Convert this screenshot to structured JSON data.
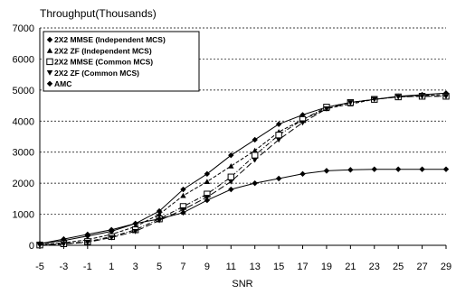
{
  "chart_data": {
    "type": "line",
    "title": "Throughput(Thousands)",
    "xlabel": "SNR",
    "ylabel": "",
    "xlim": [
      -5,
      29
    ],
    "ylim": [
      0,
      7000
    ],
    "x_ticks": [
      "-5",
      "-3",
      "-1",
      "1",
      "3",
      "5",
      "7",
      "9",
      "11",
      "13",
      "15",
      "17",
      "19",
      "21",
      "23",
      "25",
      "27",
      "29"
    ],
    "y_ticks": [
      "0",
      "1000",
      "2000",
      "3000",
      "4000",
      "5000",
      "6000",
      "7000"
    ],
    "grid": "horizontal dotted",
    "legend_position": "top-left",
    "x": [
      -5,
      -3,
      -1,
      1,
      3,
      5,
      7,
      9,
      11,
      13,
      15,
      17,
      19,
      21,
      23,
      25,
      27,
      29
    ],
    "series": [
      {
        "name": "2X2 MMSE (Independent MCS)",
        "marker": "diamond",
        "dash": "solid",
        "values": [
          50,
          150,
          300,
          450,
          700,
          1100,
          1800,
          2300,
          2900,
          3400,
          3900,
          4200,
          4450,
          4600,
          4700,
          4800,
          4850,
          4900
        ]
      },
      {
        "name": "2X2 ZF (Independent MCS)",
        "marker": "triangle-up",
        "dash": "dash",
        "values": [
          20,
          80,
          180,
          350,
          600,
          1000,
          1600,
          2050,
          2550,
          3050,
          3650,
          4050,
          4400,
          4550,
          4700,
          4780,
          4830,
          4850
        ]
      },
      {
        "name": "2X2 MMSE (Common MCS)",
        "marker": "square",
        "dash": "dashdot",
        "values": [
          10,
          50,
          120,
          280,
          500,
          850,
          1250,
          1650,
          2200,
          2900,
          3550,
          4050,
          4450,
          4600,
          4700,
          4780,
          4800,
          4800
        ]
      },
      {
        "name": "2X2 ZF (Common MCS)",
        "marker": "triangle-down",
        "dash": "longdash",
        "values": [
          5,
          40,
          100,
          250,
          450,
          800,
          1150,
          1550,
          2050,
          2750,
          3400,
          3950,
          4400,
          4600,
          4700,
          4780,
          4800,
          4800
        ]
      },
      {
        "name": "AMC",
        "marker": "diamond",
        "dash": "solid",
        "values": [
          50,
          200,
          350,
          500,
          700,
          850,
          1050,
          1450,
          1800,
          2000,
          2150,
          2300,
          2400,
          2430,
          2450,
          2450,
          2450,
          2450
        ]
      }
    ]
  }
}
